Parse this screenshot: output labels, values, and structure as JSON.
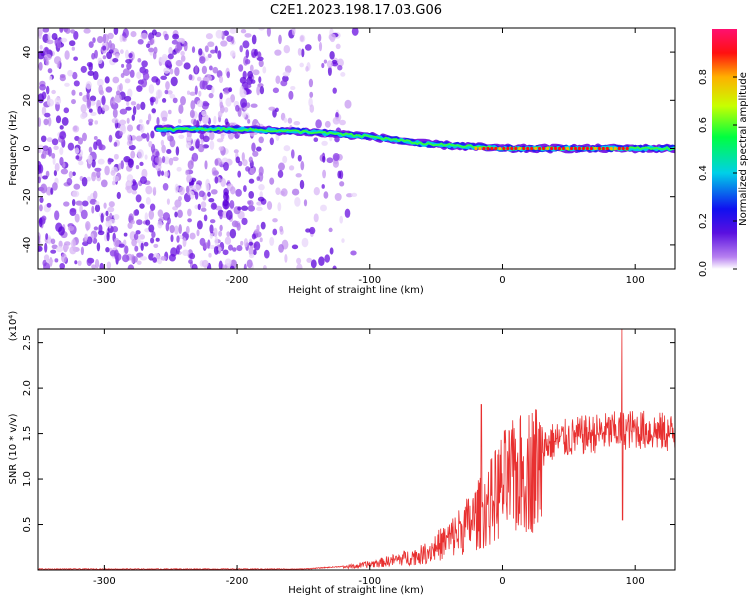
{
  "title": "C2E1.2023.198.17.03.G06",
  "colors": {
    "snr_line": "#e83030",
    "spectrogram_base": "#7a1fe6",
    "axes": "#000000"
  },
  "chart_data": [
    {
      "type": "heatmap",
      "name": "spectrogram",
      "xlabel": "Height of straight line (km)",
      "ylabel": "Frequency (Hz)",
      "xlim": [
        -350,
        130
      ],
      "ylim": [
        -50,
        50
      ],
      "x_ticks": [
        -300,
        -200,
        -100,
        0,
        100
      ],
      "y_ticks": [
        -40,
        -20,
        0,
        20,
        40
      ],
      "colorbar": {
        "label": "Normalized spectral amplitude",
        "range": [
          0,
          1
        ],
        "ticks": [
          "0.0",
          "0.2",
          "0.4",
          "0.6",
          "0.8"
        ],
        "colormap": "rainbow (purple-blue-cyan-green-yellow-red-magenta)"
      },
      "signal_trace": [
        {
          "x": -260,
          "y": 8
        },
        {
          "x": -200,
          "y": 8
        },
        {
          "x": -150,
          "y": 7
        },
        {
          "x": -100,
          "y": 5
        },
        {
          "x": -60,
          "y": 2
        },
        {
          "x": -30,
          "y": 1
        },
        {
          "x": 0,
          "y": 0
        },
        {
          "x": 50,
          "y": 0
        },
        {
          "x": 90,
          "y": 0
        },
        {
          "x": 130,
          "y": 0
        }
      ]
    },
    {
      "type": "line",
      "name": "snr",
      "xlabel": "Height of straight line (km)",
      "ylabel": "SNR (10 * v/v)",
      "y_multiplier": "(x10⁴)",
      "xlim": [
        -350,
        130
      ],
      "ylim": [
        0,
        2.65
      ],
      "x_ticks": [
        -300,
        -200,
        -100,
        0,
        100
      ],
      "y_ticks": [
        0.5,
        1.0,
        1.5,
        2.0,
        2.5
      ],
      "envelope": [
        {
          "x": -350,
          "y": 0.01
        },
        {
          "x": -150,
          "y": 0.01
        },
        {
          "x": -110,
          "y": 0.05
        },
        {
          "x": -90,
          "y": 0.1
        },
        {
          "x": -60,
          "y": 0.2
        },
        {
          "x": -40,
          "y": 0.4
        },
        {
          "x": -25,
          "y": 0.6
        },
        {
          "x": -10,
          "y": 0.85
        },
        {
          "x": 0,
          "y": 1.1
        },
        {
          "x": 20,
          "y": 1.3
        },
        {
          "x": 40,
          "y": 1.42
        },
        {
          "x": 60,
          "y": 1.48
        },
        {
          "x": 80,
          "y": 1.52
        },
        {
          "x": 100,
          "y": 1.55
        },
        {
          "x": 130,
          "y": 1.5
        }
      ],
      "spikes": [
        {
          "x": -16,
          "y": 1.82
        },
        {
          "x": 90,
          "y": 2.65
        },
        {
          "x": 90.5,
          "y": 0.55
        }
      ]
    }
  ]
}
